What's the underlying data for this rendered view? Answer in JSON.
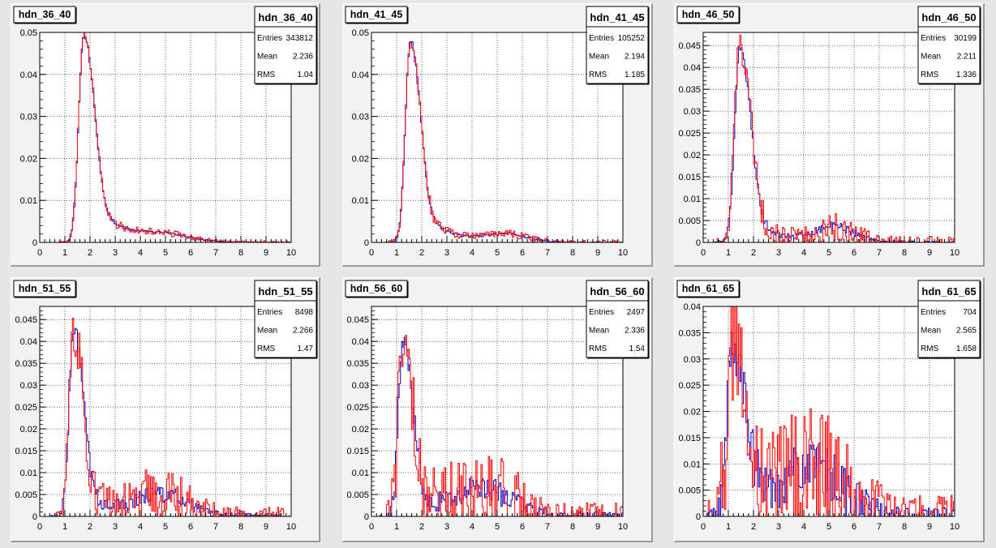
{
  "colors": {
    "canvas_bg": "#e6e6e6",
    "pad_bg": "#f2f2f2",
    "frame_bg": "#ffffff",
    "grid": "#000000",
    "series_1": "#0000cc",
    "series_2": "#ff0000"
  },
  "chart_data": [
    {
      "type": "histogram",
      "title": "hdn_36_40",
      "stats_title": "hdn_36_40",
      "stats": {
        "entries_label": "Entries",
        "entries": "343812",
        "mean_label": "Mean",
        "mean": "2.236",
        "rms_label": "RMS",
        "rms": "1.04"
      },
      "xlim": [
        0,
        10
      ],
      "ylim": [
        0,
        0.05
      ],
      "xticks": [
        "0",
        "1",
        "2",
        "3",
        "4",
        "5",
        "6",
        "7",
        "8",
        "9",
        "10"
      ],
      "yticks": [
        {
          "v": 0,
          "label": "0"
        },
        {
          "v": 0.01,
          "label": "0.01"
        },
        {
          "v": 0.02,
          "label": "0.02"
        },
        {
          "v": 0.03,
          "label": "0.03"
        },
        {
          "v": 0.04,
          "label": "0.04"
        },
        {
          "v": 0.05,
          "label": "0.05"
        }
      ],
      "grid": true,
      "series_shape": {
        "peak_x": 1.75,
        "peak_y": 0.049,
        "sigma_left": 0.2,
        "sigma_right": 0.38,
        "tail_amp": 0.012,
        "tail_decay": 1.2,
        "bump_x": 5.0,
        "bump_y": 0.0015,
        "bump_sigma": 1.0,
        "cutoff_x": 7.2,
        "noise_1": 0.0003,
        "noise_2": 0.0012
      }
    },
    {
      "type": "histogram",
      "title": "hdn_41_45",
      "stats_title": "hdn_41_45",
      "stats": {
        "entries_label": "Entries",
        "entries": "105252",
        "mean_label": "Mean",
        "mean": "2.194",
        "rms_label": "RMS",
        "rms": "1.185"
      },
      "xlim": [
        0,
        10
      ],
      "ylim": [
        0,
        0.05
      ],
      "xticks": [
        "0",
        "1",
        "2",
        "3",
        "4",
        "5",
        "6",
        "7",
        "8",
        "9",
        "10"
      ],
      "yticks": [
        {
          "v": 0,
          "label": "0"
        },
        {
          "v": 0.01,
          "label": "0.01"
        },
        {
          "v": 0.02,
          "label": "0.02"
        },
        {
          "v": 0.03,
          "label": "0.03"
        },
        {
          "v": 0.04,
          "label": "0.04"
        },
        {
          "v": 0.05,
          "label": "0.05"
        }
      ],
      "grid": true,
      "series_shape": {
        "peak_x": 1.55,
        "peak_y": 0.048,
        "sigma_left": 0.2,
        "sigma_right": 0.36,
        "tail_amp": 0.01,
        "tail_decay": 1.1,
        "bump_x": 5.4,
        "bump_y": 0.0018,
        "bump_sigma": 0.8,
        "cutoff_x": 7.3,
        "noise_1": 0.0005,
        "noise_2": 0.0015
      }
    },
    {
      "type": "histogram",
      "title": "hdn_46_50",
      "stats_title": "hdn_46_50",
      "stats": {
        "entries_label": "Entries",
        "entries": "30199",
        "mean_label": "Mean",
        "mean": "2.211",
        "rms_label": "RMS",
        "rms": "1.336"
      },
      "xlim": [
        0,
        10
      ],
      "ylim": [
        0,
        0.048
      ],
      "xticks": [
        "0",
        "1",
        "2",
        "3",
        "4",
        "5",
        "6",
        "7",
        "8",
        "9",
        "10"
      ],
      "yticks": [
        {
          "v": 0,
          "label": "0"
        },
        {
          "v": 0.005,
          "label": "0.005"
        },
        {
          "v": 0.01,
          "label": "0.01"
        },
        {
          "v": 0.015,
          "label": "0.015"
        },
        {
          "v": 0.02,
          "label": "0.02"
        },
        {
          "v": 0.025,
          "label": "0.025"
        },
        {
          "v": 0.03,
          "label": "0.03"
        },
        {
          "v": 0.035,
          "label": "0.035"
        },
        {
          "v": 0.04,
          "label": "0.04"
        },
        {
          "v": 0.045,
          "label": "0.045"
        }
      ],
      "grid": true,
      "series_shape": {
        "peak_x": 1.45,
        "peak_y": 0.045,
        "sigma_left": 0.2,
        "sigma_right": 0.4,
        "tail_amp": 0.008,
        "tail_decay": 1.0,
        "bump_x": 5.2,
        "bump_y": 0.0035,
        "bump_sigma": 0.8,
        "cutoff_x": 7.6,
        "noise_1": 0.0012,
        "noise_2": 0.004
      }
    },
    {
      "type": "histogram",
      "title": "hdn_51_55",
      "stats_title": "hdn_51_55",
      "stats": {
        "entries_label": "Entries",
        "entries": "8498",
        "mean_label": "Mean",
        "mean": "2.266",
        "rms_label": "RMS",
        "rms": "1.47"
      },
      "xlim": [
        0,
        10
      ],
      "ylim": [
        0,
        0.048
      ],
      "xticks": [
        "0",
        "1",
        "2",
        "3",
        "4",
        "5",
        "6",
        "7",
        "8",
        "9",
        "10"
      ],
      "yticks": [
        {
          "v": 0,
          "label": "0"
        },
        {
          "v": 0.005,
          "label": "0.005"
        },
        {
          "v": 0.01,
          "label": "0.01"
        },
        {
          "v": 0.015,
          "label": "0.015"
        },
        {
          "v": 0.02,
          "label": "0.02"
        },
        {
          "v": 0.025,
          "label": "0.025"
        },
        {
          "v": 0.03,
          "label": "0.03"
        },
        {
          "v": 0.035,
          "label": "0.035"
        },
        {
          "v": 0.04,
          "label": "0.04"
        },
        {
          "v": 0.045,
          "label": "0.045"
        }
      ],
      "grid": true,
      "series_shape": {
        "peak_x": 1.35,
        "peak_y": 0.043,
        "sigma_left": 0.18,
        "sigma_right": 0.35,
        "tail_amp": 0.008,
        "tail_decay": 1.0,
        "bump_x": 4.8,
        "bump_y": 0.005,
        "bump_sigma": 1.0,
        "cutoff_x": 8.0,
        "noise_1": 0.002,
        "noise_2": 0.006
      }
    },
    {
      "type": "histogram",
      "title": "hdn_56_60",
      "stats_title": "hdn_56_60",
      "stats": {
        "entries_label": "Entries",
        "entries": "2497",
        "mean_label": "Mean",
        "mean": "2.336",
        "rms_label": "RMS",
        "rms": "1.54"
      },
      "xlim": [
        0,
        10
      ],
      "ylim": [
        0,
        0.048
      ],
      "xticks": [
        "0",
        "1",
        "2",
        "3",
        "4",
        "5",
        "6",
        "7",
        "8",
        "9",
        "10"
      ],
      "yticks": [
        {
          "v": 0,
          "label": "0"
        },
        {
          "v": 0.005,
          "label": "0.005"
        },
        {
          "v": 0.01,
          "label": "0.01"
        },
        {
          "v": 0.015,
          "label": "0.015"
        },
        {
          "v": 0.02,
          "label": "0.02"
        },
        {
          "v": 0.025,
          "label": "0.025"
        },
        {
          "v": 0.03,
          "label": "0.03"
        },
        {
          "v": 0.035,
          "label": "0.035"
        },
        {
          "v": 0.04,
          "label": "0.04"
        },
        {
          "v": 0.045,
          "label": "0.045"
        }
      ],
      "grid": true,
      "series_shape": {
        "peak_x": 1.25,
        "peak_y": 0.04,
        "sigma_left": 0.18,
        "sigma_right": 0.35,
        "tail_amp": 0.009,
        "tail_decay": 1.0,
        "bump_x": 4.5,
        "bump_y": 0.006,
        "bump_sigma": 1.1,
        "cutoff_x": 7.5,
        "noise_1": 0.003,
        "noise_2": 0.009
      }
    },
    {
      "type": "histogram",
      "title": "hdn_61_65",
      "stats_title": "hdn_61_65",
      "stats": {
        "entries_label": "Entries",
        "entries": "704",
        "mean_label": "Mean",
        "mean": "2.565",
        "rms_label": "RMS",
        "rms": "1.658"
      },
      "xlim": [
        0,
        10
      ],
      "ylim": [
        0,
        0.04
      ],
      "xticks": [
        "0",
        "1",
        "2",
        "3",
        "4",
        "5",
        "6",
        "7",
        "8",
        "9",
        "10"
      ],
      "yticks": [
        {
          "v": 0,
          "label": "0"
        },
        {
          "v": 0.005,
          "label": "0.005"
        },
        {
          "v": 0.01,
          "label": "0.01"
        },
        {
          "v": 0.015,
          "label": "0.015"
        },
        {
          "v": 0.02,
          "label": "0.02"
        },
        {
          "v": 0.025,
          "label": "0.025"
        },
        {
          "v": 0.03,
          "label": "0.03"
        },
        {
          "v": 0.035,
          "label": "0.035"
        },
        {
          "v": 0.04,
          "label": "0.04"
        }
      ],
      "grid": true,
      "series_shape": {
        "peak_x": 1.15,
        "peak_y": 0.032,
        "sigma_left": 0.2,
        "sigma_right": 0.45,
        "tail_amp": 0.01,
        "tail_decay": 1.0,
        "bump_x": 4.3,
        "bump_y": 0.009,
        "bump_sigma": 1.2,
        "cutoff_x": 7.0,
        "noise_1": 0.005,
        "noise_2": 0.012
      }
    }
  ]
}
